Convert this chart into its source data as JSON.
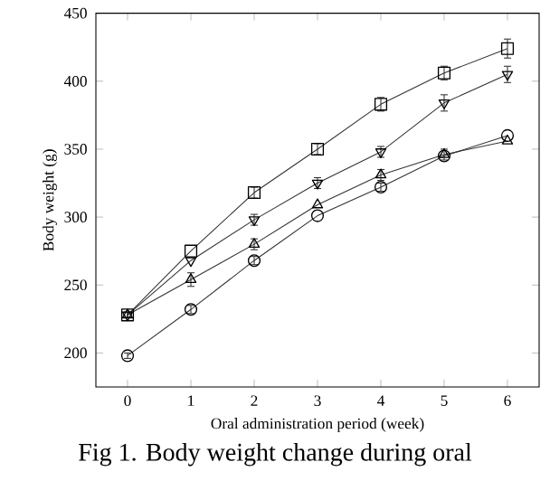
{
  "chart_data": {
    "type": "line",
    "xlabel": "Oral administration period (week)",
    "ylabel": "Body weight (g)",
    "x": [
      0,
      1,
      2,
      3,
      4,
      5,
      6
    ],
    "xlim": [
      -0.5,
      6.5
    ],
    "xticks": [
      0,
      1,
      2,
      3,
      4,
      5,
      6
    ],
    "ylim": [
      175,
      450
    ],
    "yticks": [
      200,
      250,
      300,
      350,
      400,
      450
    ],
    "grid": false,
    "series": [
      {
        "color": "#333333",
        "marker": "square",
        "values": [
          228,
          275,
          318,
          350,
          383,
          406,
          424
        ],
        "errors": [
          2,
          null,
          4,
          4,
          5,
          5,
          7
        ]
      },
      {
        "color": "#333333",
        "marker": "triangle_down",
        "values": [
          228,
          268,
          298,
          325,
          348,
          384,
          405
        ],
        "errors": [
          2,
          null,
          4,
          4,
          4,
          6,
          6
        ]
      },
      {
        "color": "#333333",
        "marker": "triangle",
        "values": [
          228,
          254,
          280,
          309,
          331,
          346,
          356
        ],
        "errors": [
          2,
          5,
          4,
          null,
          4,
          4,
          null
        ]
      },
      {
        "color": "#333333",
        "marker": "circle",
        "values": [
          198,
          232,
          268,
          301,
          322,
          345,
          360
        ],
        "errors": [
          2,
          3,
          3,
          null,
          3,
          null,
          null
        ]
      }
    ],
    "annotations": [
      "Fig 1. Body  weight  change  during  oral"
    ]
  }
}
